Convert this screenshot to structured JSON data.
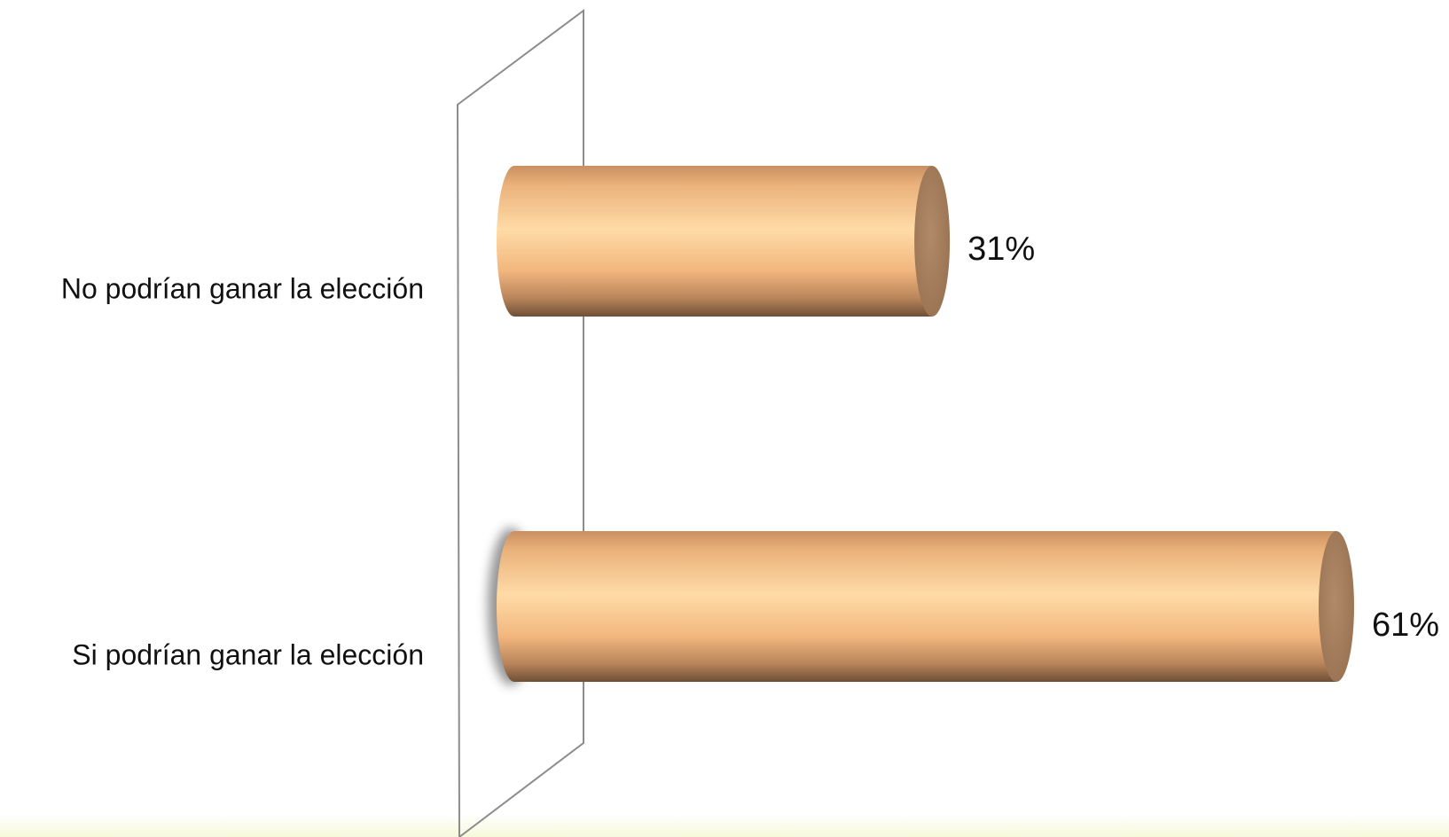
{
  "chart_data": {
    "type": "bar",
    "orientation": "horizontal",
    "style": "3d-cylinder",
    "categories": [
      "No podrían ganar la elección",
      "Si podrían ganar la elección"
    ],
    "values": [
      31,
      61
    ],
    "value_labels": [
      "31%",
      "61%"
    ],
    "xlim": [
      0,
      61
    ],
    "grid": false,
    "legend": "none"
  },
  "colors": {
    "bar_light": "#ffd9a3",
    "bar_mid": "#f0b47c",
    "bar_dark": "#7a5a3e",
    "bar_cap": "#a7805f",
    "wall_stroke": "#8c8c8c"
  }
}
